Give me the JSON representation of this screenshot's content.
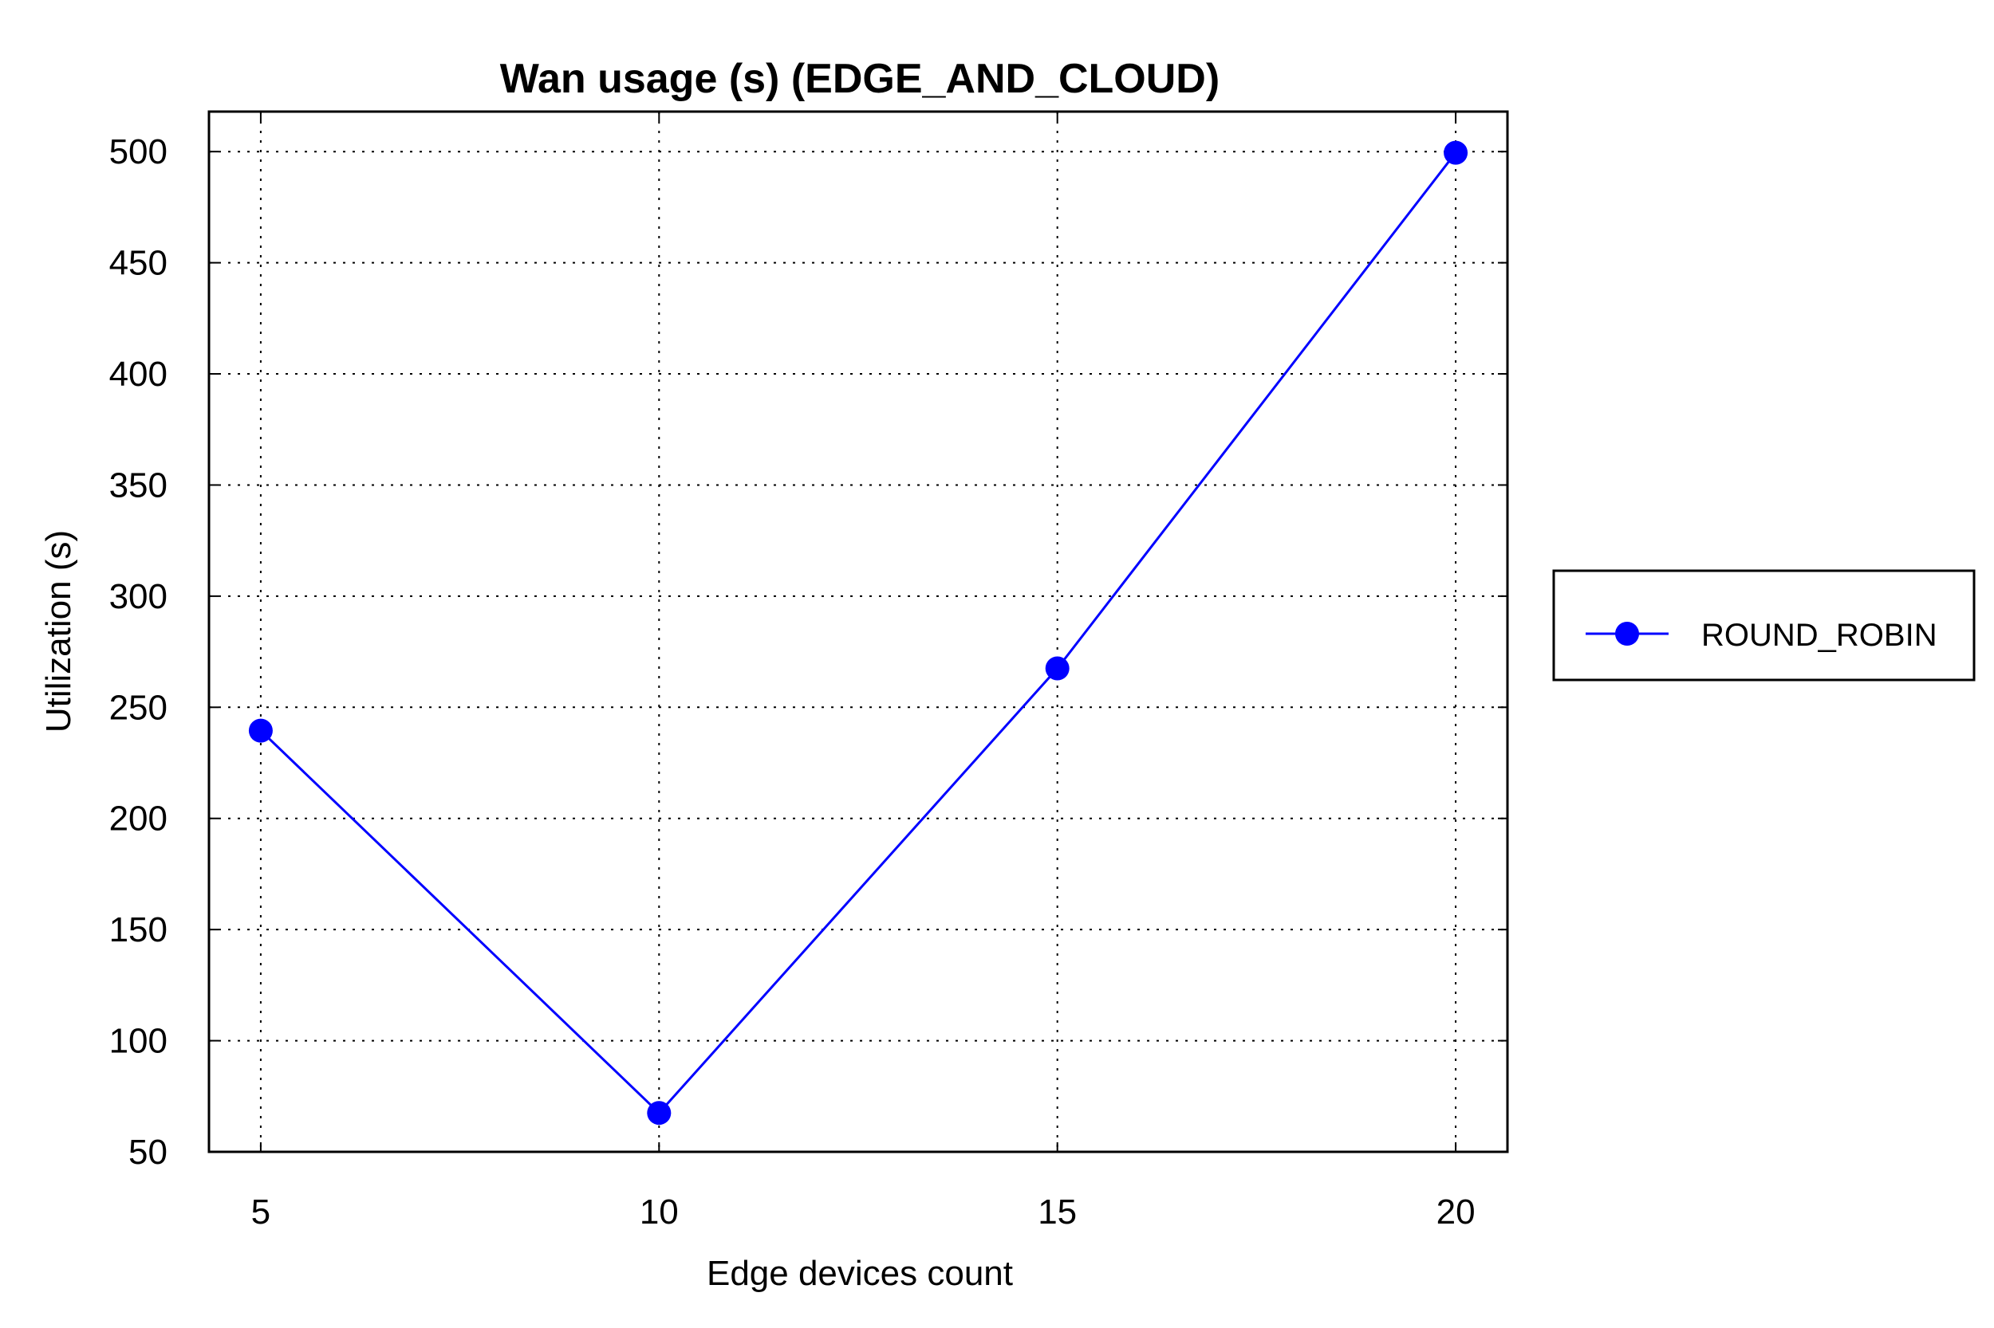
{
  "chart_data": {
    "type": "line",
    "title": "Wan usage (s) (EDGE_AND_CLOUD)",
    "xlabel": "Edge devices count",
    "ylabel": "Utilization (s)",
    "x": [
      5,
      10,
      15,
      20
    ],
    "xticks": [
      5,
      10,
      15,
      20
    ],
    "yticks": [
      50,
      100,
      150,
      200,
      250,
      300,
      350,
      400,
      450,
      500
    ],
    "xlim": [
      4.35,
      20.65
    ],
    "ylim": [
      50,
      518
    ],
    "grid": true,
    "legend_position": "right",
    "series": [
      {
        "name": "ROUND_ROBIN",
        "values": [
          239.5,
          67.5,
          267.5,
          499.5
        ],
        "color": "#0000ff",
        "marker": "circle"
      }
    ]
  }
}
